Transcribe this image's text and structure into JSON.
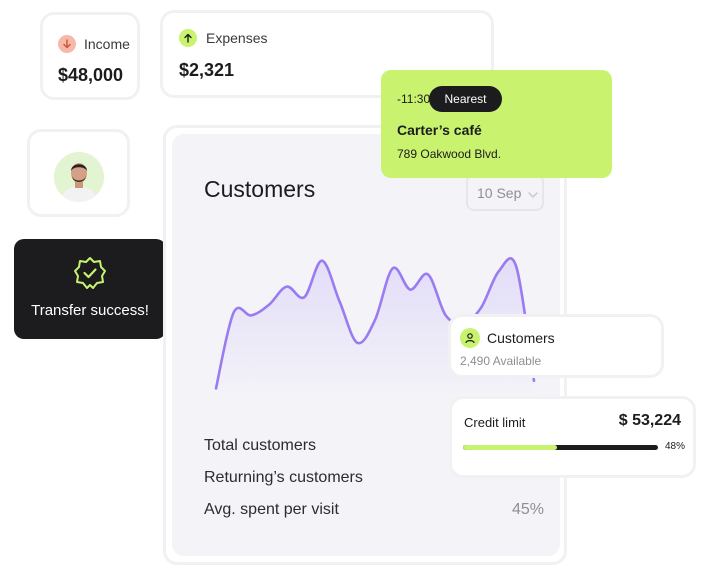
{
  "income": {
    "label": "Income",
    "value": "$48,000",
    "icon": "arrow-down-icon"
  },
  "expenses": {
    "label": "Expenses",
    "value": "$2,321",
    "icon": "arrow-up-icon"
  },
  "transfer": {
    "label": "Transfer success!",
    "icon": "verified-badge-icon"
  },
  "customers_panel": {
    "title": "Customers",
    "date_select": "10 Sep",
    "stats": [
      {
        "label": "Total customers",
        "value": ""
      },
      {
        "label": "Returning’s customers",
        "value": ""
      },
      {
        "label": "Avg. spent per visit",
        "value": "45%"
      }
    ]
  },
  "nearest": {
    "time": "-11:30",
    "badge": "Nearest",
    "place": "Carter’s café",
    "address": "789 Oakwood Blvd."
  },
  "customers_mini": {
    "title": "Customers",
    "subtitle": "2,490 Available",
    "icon": "user-icon"
  },
  "credit": {
    "label": "Credit limit",
    "amount": "$ 53,224",
    "percent_label": "48%",
    "percent": 48
  },
  "colors": {
    "accent": "#c7f36e",
    "line": "#9b7bf0",
    "dark": "#1c1c1e"
  },
  "chart_data": {
    "type": "line",
    "title": "Customers",
    "series": [
      {
        "values": [
          5,
          55,
          53,
          60,
          72,
          65,
          89,
          62,
          35,
          50,
          84,
          70,
          80,
          53,
          48,
          58,
          82,
          85,
          10
        ]
      }
    ],
    "ylim": [
      0,
      100
    ],
    "grid": false
  }
}
